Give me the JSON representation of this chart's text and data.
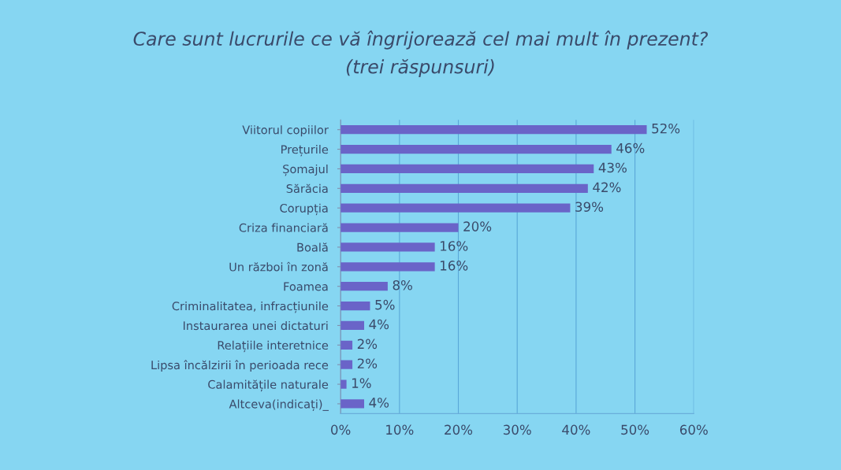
{
  "chart_data": {
    "type": "bar",
    "orientation": "horizontal",
    "title": "Care sunt lucrurile ce vă îngrijorează cel mai mult în prezent?",
    "subtitle": "(trei răspunsuri)",
    "categories": [
      "Viitorul copiilor",
      "Prețurile",
      "Șomajul",
      "Sărăcia",
      "Corupția",
      "Criza financiară",
      "Boală",
      "Un război în zonă",
      "Foamea",
      "Criminalitatea, infracțiunile",
      "Instaurarea unei dictaturi",
      "Relațiile interetnice",
      "Lipsa încălzirii în perioada rece",
      "Calamitățile naturale",
      "Altceva(indicați)_"
    ],
    "values": [
      52,
      46,
      43,
      42,
      39,
      20,
      16,
      16,
      8,
      5,
      4,
      2,
      2,
      1,
      4
    ],
    "value_labels": [
      "52%",
      "46%",
      "43%",
      "42%",
      "39%",
      "20%",
      "16%",
      "16%",
      "8%",
      "5%",
      "4%",
      "2%",
      "2%",
      "1%",
      "4%"
    ],
    "color": "#6a64c8",
    "xlim": [
      0,
      60
    ],
    "xticks": [
      {
        "value": 0,
        "label": "0%"
      },
      {
        "value": 10,
        "label": "10%"
      },
      {
        "value": 20,
        "label": "20%"
      },
      {
        "value": 30,
        "label": "30%"
      },
      {
        "value": 40,
        "label": "40%"
      },
      {
        "value": 50,
        "label": "50%"
      },
      {
        "value": 60,
        "label": "60%"
      }
    ],
    "grid": "x",
    "legend": false
  }
}
